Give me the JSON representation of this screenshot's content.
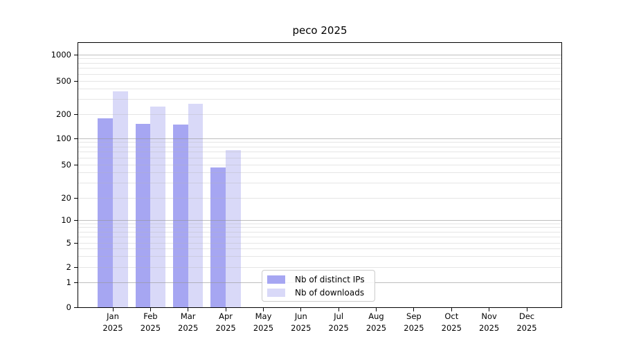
{
  "title": "peco 2025",
  "legend": {
    "items": [
      {
        "label": "Nb of distinct IPs",
        "color": "#a6a6f2"
      },
      {
        "label": "Nb of downloads",
        "color": "#d9d9f8"
      }
    ]
  },
  "axes": {
    "y_tick_labels": [
      "1000",
      "500",
      "200",
      "100",
      "50",
      "20",
      "10",
      "5",
      "2",
      "1",
      "0"
    ],
    "x_ticks": [
      {
        "month": "Jan",
        "year": "2025"
      },
      {
        "month": "Feb",
        "year": "2025"
      },
      {
        "month": "Mar",
        "year": "2025"
      },
      {
        "month": "Apr",
        "year": "2025"
      },
      {
        "month": "May",
        "year": "2025"
      },
      {
        "month": "Jun",
        "year": "2025"
      },
      {
        "month": "Jul",
        "year": "2025"
      },
      {
        "month": "Aug",
        "year": "2025"
      },
      {
        "month": "Sep",
        "year": "2025"
      },
      {
        "month": "Oct",
        "year": "2025"
      },
      {
        "month": "Nov",
        "year": "2025"
      },
      {
        "month": "Dec",
        "year": "2025"
      }
    ]
  },
  "chart_data": {
    "type": "bar",
    "title": "peco 2025",
    "categories": [
      "Jan 2025",
      "Feb 2025",
      "Mar 2025",
      "Apr 2025",
      "May 2025",
      "Jun 2025",
      "Jul 2025",
      "Aug 2025",
      "Sep 2025",
      "Oct 2025",
      "Nov 2025",
      "Dec 2025"
    ],
    "series": [
      {
        "name": "Nb of distinct IPs",
        "color": "#a6a6f2",
        "values": [
          178,
          151,
          148,
          46,
          0,
          0,
          0,
          0,
          0,
          0,
          0,
          0
        ]
      },
      {
        "name": "Nb of downloads",
        "color": "#d9d9f8",
        "values": [
          373,
          245,
          265,
          73,
          0,
          0,
          0,
          0,
          0,
          0,
          0,
          0
        ]
      }
    ],
    "yscale": "symlog",
    "y_ticks": [
      0,
      1,
      2,
      5,
      10,
      20,
      50,
      100,
      200,
      500,
      1000
    ],
    "ylim": [
      0,
      1400
    ],
    "grid": true,
    "grid_above_bars": true,
    "legend_position": "lower center"
  }
}
